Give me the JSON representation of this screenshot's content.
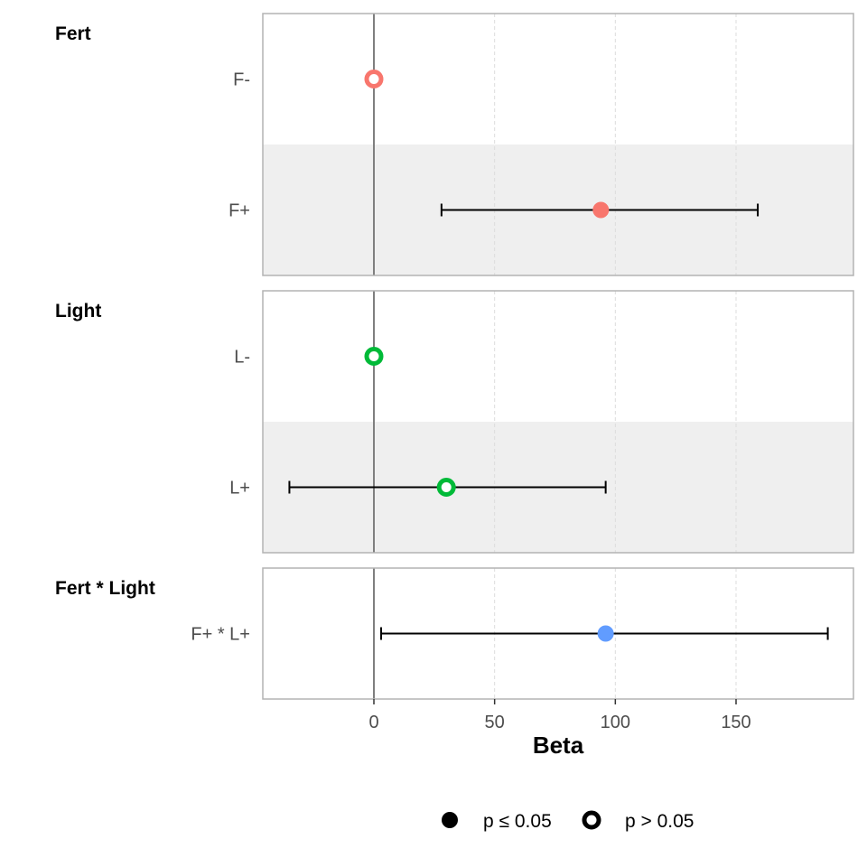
{
  "chart_data": {
    "type": "forest",
    "xlabel": "Beta",
    "xlim": [
      -46,
      199
    ],
    "xticks": [
      0,
      50,
      100,
      150
    ],
    "reference_line": 0,
    "groups": [
      {
        "title": "Fert",
        "rows": [
          {
            "label": "F-",
            "beta": 0,
            "lo": null,
            "hi": null,
            "significant": false,
            "color": "#F8766D"
          },
          {
            "label": "F+",
            "beta": 94,
            "lo": 28,
            "hi": 159,
            "significant": true,
            "color": "#F8766D"
          }
        ]
      },
      {
        "title": "Light",
        "rows": [
          {
            "label": "L-",
            "beta": 0,
            "lo": null,
            "hi": null,
            "significant": false,
            "color": "#00BA38"
          },
          {
            "label": "L+",
            "beta": 30,
            "lo": -35,
            "hi": 96,
            "significant": false,
            "color": "#00BA38"
          }
        ]
      },
      {
        "title": "Fert * Light",
        "rows": [
          {
            "label": "F+ * L+",
            "beta": 96,
            "lo": 3,
            "hi": 188,
            "significant": true,
            "color": "#619CFF"
          }
        ]
      }
    ],
    "legend": {
      "position": "bottom",
      "items": [
        {
          "label": "p ≤ 0.05",
          "style": "filled"
        },
        {
          "label": "p > 0.05",
          "style": "hollow"
        }
      ]
    }
  }
}
